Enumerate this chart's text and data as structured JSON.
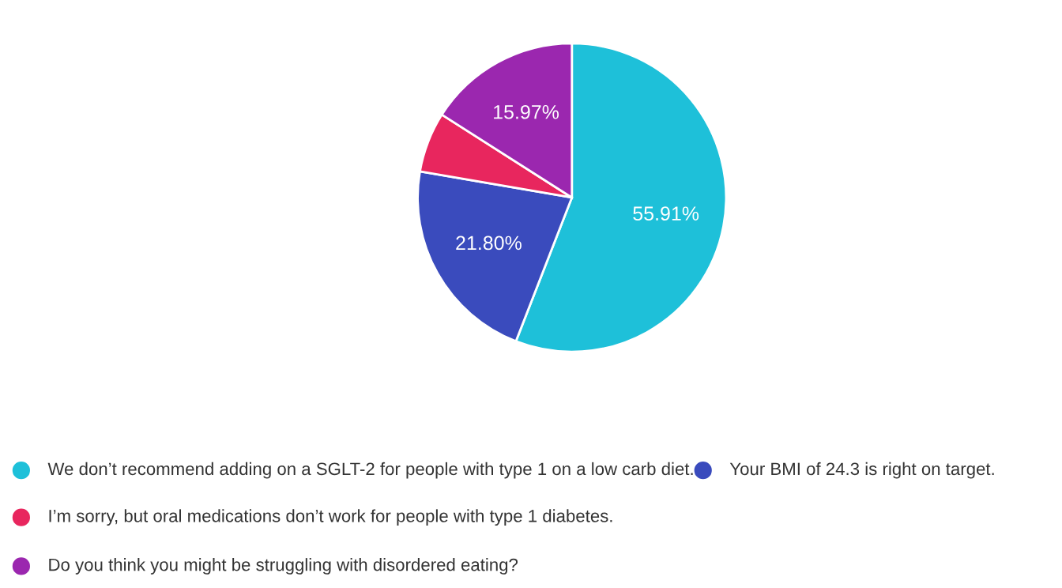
{
  "chart_data": {
    "type": "pie",
    "categories": [
      "We don’t recommend adding on a SGLT-2 for people with type 1 on a low carb diet.",
      "Your BMI of 24.3 is right on target.",
      "I’m sorry, but oral medications don’t work for people with type 1 diabetes.",
      "Do you think you might be struggling with disordered eating?"
    ],
    "values": [
      55.91,
      21.8,
      6.32,
      15.97
    ],
    "value_labels": [
      "55.91%",
      "21.80%",
      null,
      "15.97%"
    ],
    "colors": [
      "#1ec0d9",
      "#3a4bbd",
      "#e8265e",
      "#9b27af"
    ],
    "legend": "bottom"
  }
}
